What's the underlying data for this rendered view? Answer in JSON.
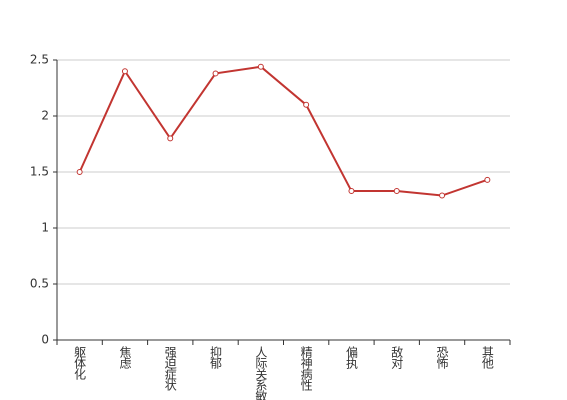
{
  "chart_data": {
    "type": "line",
    "categories": [
      "躯体化",
      "焦虑",
      "强迫症状",
      "抑郁",
      "人际关系敏感",
      "精神病性",
      "偏执",
      "敌对",
      "恐怖",
      "其他"
    ],
    "series": [
      {
        "color": "#c23531",
        "values": [
          1.5,
          2.4,
          1.8,
          2.38,
          2.44,
          2.1,
          1.33,
          1.33,
          1.29,
          1.43
        ]
      }
    ],
    "ylim": [
      0,
      2.5
    ],
    "yticks": [
      0,
      0.5,
      1,
      1.5,
      2,
      2.5
    ],
    "grid": true
  }
}
